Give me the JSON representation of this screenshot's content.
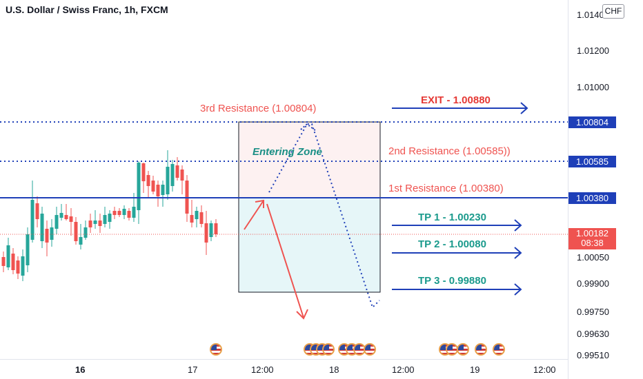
{
  "header": {
    "title": "U.S. Dollar / Swiss Franc, 1h, FXCM",
    "currency_button": "CHF"
  },
  "price_axis": {
    "ticks": [
      "1.01400",
      "1.01200",
      "1.01000",
      "1.00050",
      "0.99900",
      "0.99750",
      "0.99630",
      "0.99510"
    ],
    "labels": [
      {
        "text": "1.00804",
        "color": "#1e3fb8"
      },
      {
        "text": "1.00585",
        "color": "#1e3fb8"
      },
      {
        "text": "1.00380",
        "color": "#1e3fb8"
      },
      {
        "text": "1.00182",
        "subtext": "08:38",
        "color": "#ef5350"
      }
    ]
  },
  "time_axis": {
    "ticks": [
      "16",
      "17",
      "12:00",
      "18",
      "12:00",
      "19",
      "12:00"
    ]
  },
  "annotations": {
    "third_resistance": "3rd Resistance (1.00804)",
    "second_resistance": "2nd Resistance (1.00585))",
    "first_resistance": "1st Resistance (1.00380)",
    "entering_zone": "Entering Zone",
    "exit": "EXIT - 1.00880",
    "tp1": "TP 1 - 1.00230",
    "tp2": "TP 2 - 1.00080",
    "tp3": "TP 3 - 0.99880"
  },
  "colors": {
    "bull": "#26a69a",
    "bear": "#ef5350",
    "level_line": "#1e3fb8",
    "resistance_text": "#ef5350",
    "tp_text": "#26a69a",
    "exit_text": "#e53935"
  },
  "chart_data": {
    "type": "candlestick",
    "symbol": "USD/CHF",
    "interval": "1h",
    "levels": [
      1.00804,
      1.00585,
      1.0038,
      1.00182
    ],
    "targets": {
      "exit": 1.0088,
      "tp1": 1.0023,
      "tp2": 1.0008,
      "tp3": 0.9988
    }
  }
}
